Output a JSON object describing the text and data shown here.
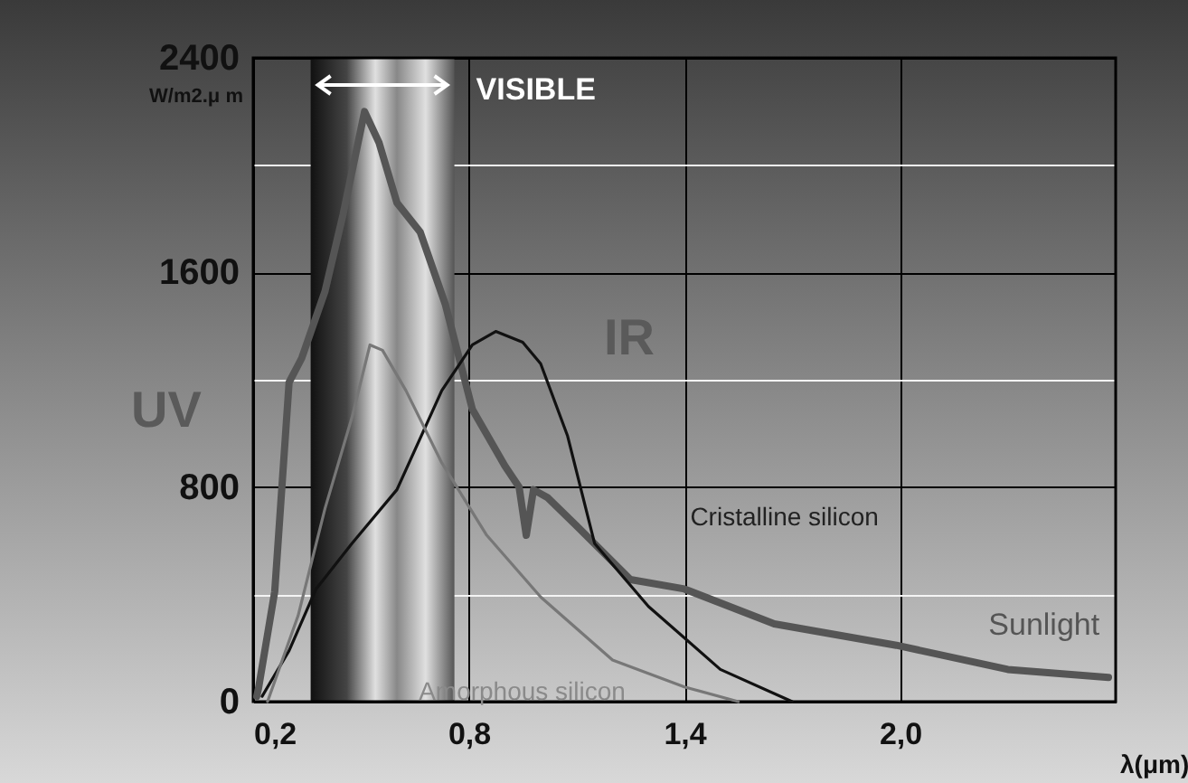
{
  "chart_data": {
    "type": "line",
    "xlabel": "λ(μm)",
    "ylabel": "W/m2.μ m",
    "xlim": [
      0.2,
      2.6
    ],
    "ylim": [
      0,
      2400
    ],
    "xticks": [
      {
        "value": 0.2,
        "label": "0,2"
      },
      {
        "value": 0.8,
        "label": "0,8"
      },
      {
        "value": 1.4,
        "label": "1,4"
      },
      {
        "value": 2.0,
        "label": "2,0"
      }
    ],
    "yticks": [
      0,
      {
        "value": 400,
        "label": null
      },
      800,
      {
        "value": 1200,
        "label": null
      },
      1600,
      {
        "value": 2000,
        "label": null
      },
      2400
    ],
    "grid": true,
    "marker": "none",
    "line_style": "solid",
    "bands": [
      {
        "axis": "x",
        "from": 0.36,
        "to": 0.76,
        "label": "VISIBLE",
        "color": "#e0e0e0"
      }
    ],
    "annotations": [
      "UV",
      "IR"
    ],
    "series": [
      {
        "name": "Sunlight",
        "color": "#555555",
        "x": [
          0.21,
          0.215,
          0.26,
          0.3,
          0.335,
          0.4,
          0.45,
          0.51,
          0.55,
          0.6,
          0.665,
          0.735,
          0.81,
          0.9,
          0.94,
          0.96,
          0.98,
          1.02,
          1.1,
          1.25,
          1.4,
          1.65,
          1.99,
          2.3,
          2.58
        ],
        "values": [
          20,
          50,
          410,
          1190,
          1280,
          1530,
          1815,
          2200,
          2085,
          1860,
          1750,
          1480,
          1090,
          880,
          800,
          620,
          790,
          760,
          655,
          455,
          420,
          290,
          210,
          120,
          90
        ]
      },
      {
        "name": "Cristalline silicon",
        "color": "#111111",
        "x": [
          0.225,
          0.3,
          0.375,
          0.475,
          0.6,
          0.725,
          0.81,
          0.875,
          0.95,
          1.0,
          1.075,
          1.15,
          1.3,
          1.5,
          1.7
        ],
        "values": [
          20,
          190,
          420,
          590,
          790,
          1160,
          1330,
          1380,
          1340,
          1260,
          990,
          590,
          355,
          120,
          0
        ]
      },
      {
        "name": "Amorphous silicon",
        "color": "#777777",
        "x": [
          0.24,
          0.325,
          0.4,
          0.475,
          0.525,
          0.56,
          0.625,
          0.725,
          0.85,
          1.0,
          1.2,
          1.4,
          1.55
        ],
        "values": [
          0,
          320,
          720,
          1060,
          1330,
          1310,
          1160,
          890,
          620,
          390,
          155,
          55,
          0
        ]
      }
    ]
  }
}
